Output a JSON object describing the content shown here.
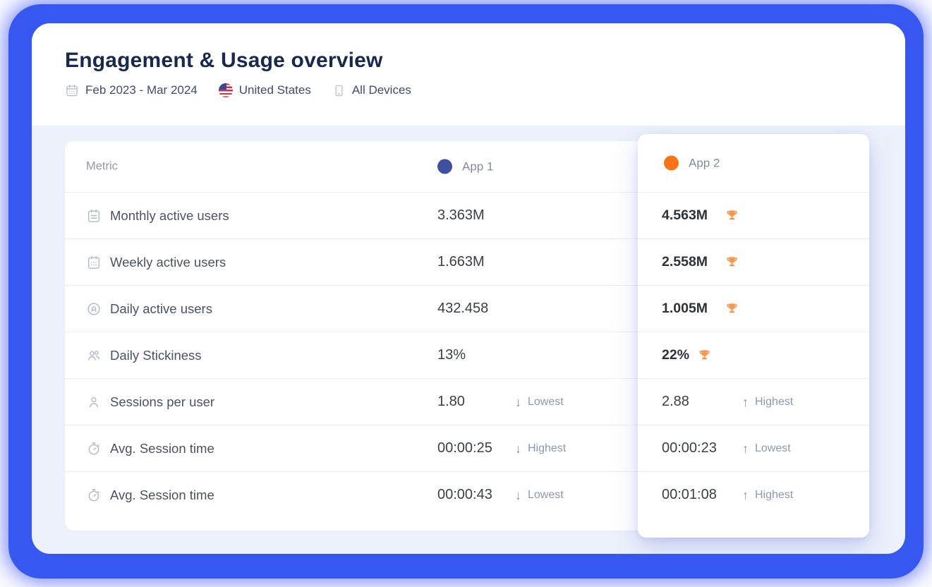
{
  "header": {
    "title": "Engagement & Usage overview",
    "date_range": "Feb 2023 - Mar 2024",
    "country": "United States",
    "devices": "All Devices"
  },
  "table": {
    "metric_header": "Metric",
    "apps": [
      {
        "name": "App 1",
        "dot_color": "#3e509e"
      },
      {
        "name": "App 2",
        "dot_color": "#f97316"
      }
    ],
    "rows": [
      {
        "icon": "calendar-lines",
        "metric": "Monthly active users",
        "app1": {
          "value": "3.363M"
        },
        "app2": {
          "value": "4.563M",
          "trophy": true
        }
      },
      {
        "icon": "calendar-dots",
        "metric": "Weekly active users",
        "app1": {
          "value": "1.663M"
        },
        "app2": {
          "value": "2.558M",
          "trophy": true
        }
      },
      {
        "icon": "daily-circle",
        "metric": "Daily active users",
        "app1": {
          "value": "432.458"
        },
        "app2": {
          "value": "1.005M",
          "trophy": true
        }
      },
      {
        "icon": "users",
        "metric": "Daily Stickiness",
        "app1": {
          "value": "13%"
        },
        "app2": {
          "value": "22%",
          "trophy": true
        }
      },
      {
        "icon": "user",
        "metric": "Sessions per user",
        "app1": {
          "value": "1.80",
          "badge": "Lowest",
          "dir": "down"
        },
        "app2": {
          "value": "2.88",
          "badge": "Highest",
          "dir": "up"
        }
      },
      {
        "icon": "stopwatch",
        "metric": "Avg. Session time",
        "app1": {
          "value": "00:00:25",
          "badge": "Highest",
          "dir": "down"
        },
        "app2": {
          "value": "00:00:23",
          "badge": "Lowest",
          "dir": "up"
        }
      },
      {
        "icon": "stopwatch",
        "metric": "Avg. Session time",
        "app1": {
          "value": "00:00:43",
          "badge": "Lowest",
          "dir": "down"
        },
        "app2": {
          "value": "00:01:08",
          "badge": "Highest",
          "dir": "up"
        }
      }
    ]
  },
  "colors": {
    "frame_blue": "#3657f0",
    "panel_bg": "#edf1fb",
    "app1_dot": "#3e509e",
    "app2_dot": "#f97316",
    "trophy": "#f9964b"
  }
}
